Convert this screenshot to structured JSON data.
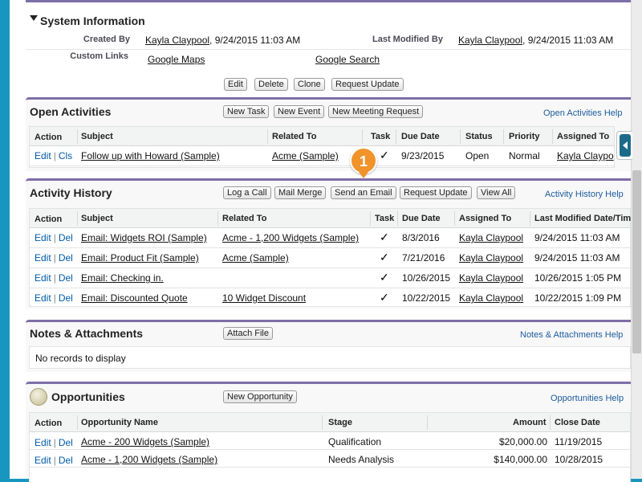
{
  "system_info": {
    "title": "System Information",
    "created_by_label": "Created By",
    "created_by_user": "Kayla Claypool",
    "created_by_date": ", 9/24/2015 11:03 AM",
    "last_modified_label": "Last Modified By",
    "last_modified_user": "Kayla Claypool",
    "last_modified_date": ", 9/24/2015 11:03 AM",
    "custom_links_label": "Custom Links",
    "link_maps": "Google Maps",
    "link_search": "Google Search",
    "buttons": [
      "Edit",
      "Delete",
      "Clone",
      "Request Update"
    ]
  },
  "open_activities": {
    "title": "Open Activities",
    "buttons": [
      "New Task",
      "New Event",
      "New Meeting Request"
    ],
    "help": "Open Activities Help",
    "columns": [
      "Action",
      "Subject",
      "Related To",
      "Task",
      "Due Date",
      "Status",
      "Priority",
      "Assigned To"
    ],
    "rows": [
      {
        "edit": "Edit",
        "cls": "Cls",
        "subject": "Follow up with Howard (Sample)",
        "related": "Acme (Sample)",
        "task": "✓",
        "due": "9/23/2015",
        "status": "Open",
        "priority": "Normal",
        "assigned": "Kayla Claypo"
      }
    ]
  },
  "activity_history": {
    "title": "Activity History",
    "buttons": [
      "Log a Call",
      "Mail Merge",
      "Send an Email",
      "Request Update",
      "View All"
    ],
    "help": "Activity History Help",
    "columns": [
      "Action",
      "Subject",
      "Related To",
      "Task",
      "Due Date",
      "Assigned To",
      "Last Modified Date/Tim"
    ],
    "rows": [
      {
        "edit": "Edit",
        "del": "Del",
        "subject": "Email: Widgets ROI (Sample)",
        "related": "Acme - 1,200 Widgets (Sample)",
        "task": "✓",
        "due": "8/3/2016",
        "assigned": "Kayla Claypool",
        "modified": "9/24/2015 11:03 AM"
      },
      {
        "edit": "Edit",
        "del": "Del",
        "subject": "Email: Product Fit (Sample)",
        "related": "Acme (Sample)",
        "task": "✓",
        "due": "7/21/2016",
        "assigned": "Kayla Claypool",
        "modified": "9/24/2015 11:03 AM"
      },
      {
        "edit": "Edit",
        "del": "Del",
        "subject": "Email: Checking in.",
        "related": "",
        "task": "✓",
        "due": "10/26/2015",
        "assigned": "Kayla Claypool",
        "modified": "10/26/2015 1:05 PM"
      },
      {
        "edit": "Edit",
        "del": "Del",
        "subject": "Email: Discounted Quote",
        "related": "10 Widget Discount",
        "task": "✓",
        "due": "10/22/2015",
        "assigned": "Kayla Claypool",
        "modified": "10/22/2015 1:09 PM"
      }
    ]
  },
  "notes": {
    "title": "Notes & Attachments",
    "button": "Attach File",
    "help": "Notes & Attachments Help",
    "empty": "No records to display"
  },
  "opportunities": {
    "title": "Opportunities",
    "button": "New Opportunity",
    "help": "Opportunities Help",
    "columns": [
      "Action",
      "Opportunity Name",
      "Stage",
      "Amount",
      "Close Date"
    ],
    "rows": [
      {
        "edit": "Edit",
        "del": "Del",
        "name": "Acme - 200 Widgets (Sample)",
        "stage": "Qualification",
        "amount": "$20,000.00",
        "close": "11/19/2015"
      },
      {
        "edit": "Edit",
        "del": "Del",
        "name": "Acme - 1,200 Widgets (Sample)",
        "stage": "Needs Analysis",
        "amount": "$140,000.00",
        "close": "10/28/2015"
      }
    ]
  },
  "callout_badge": "1",
  "colors": {
    "accent": "#7e6ea8",
    "link": "#015ba7",
    "badge": "#f0932b",
    "frame": "#1797c0"
  }
}
